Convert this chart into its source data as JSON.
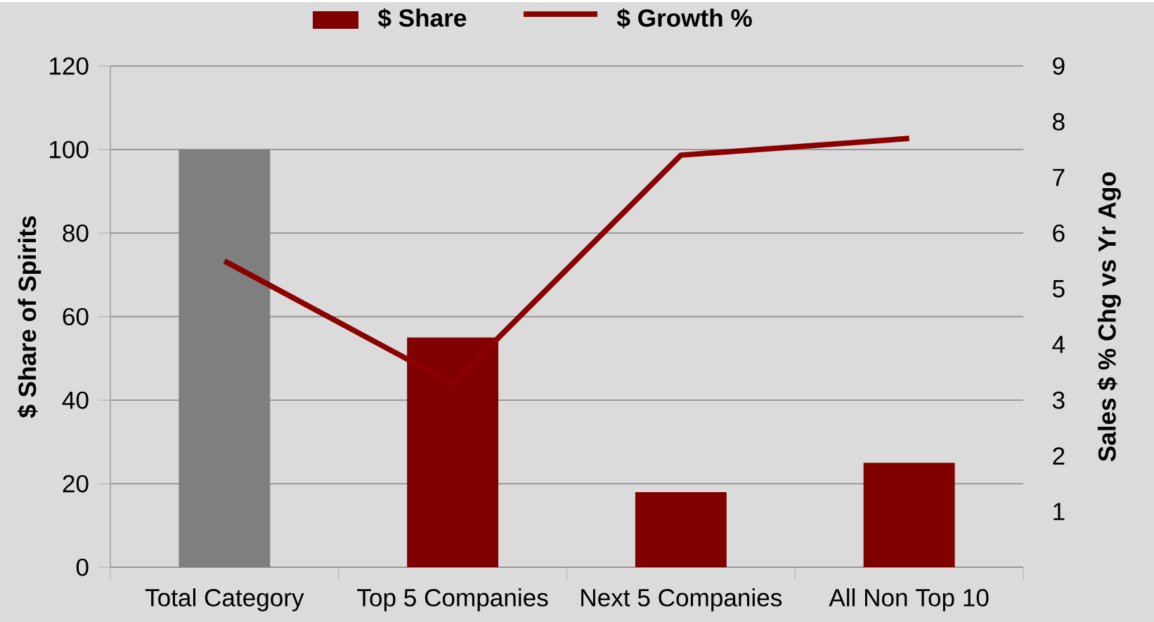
{
  "chart_data": {
    "type": "bar",
    "categories": [
      "Total Category",
      "Top 5 Companies",
      "Next 5 Companies",
      "All Non Top 10"
    ],
    "ylabel": "$ Share of Spirits",
    "y2label": "Sales $ % Chg vs Yr Ago",
    "series": [
      {
        "name": "$ Share",
        "color": "#800000",
        "colors": [
          "#7f7f7f",
          "#800000",
          "#800000",
          "#800000"
        ],
        "values": [
          100,
          55,
          18,
          25
        ]
      },
      {
        "name": "$ Growth %",
        "type": "line",
        "axis": "y2",
        "color": "#8b0000",
        "values": [
          5.5,
          3.3,
          7.4,
          7.7
        ]
      }
    ],
    "ylim": [
      0,
      120
    ],
    "yticks": [
      0,
      20,
      40,
      60,
      80,
      100,
      120
    ],
    "y2lim": [
      0,
      9
    ],
    "y2ticks": [
      1,
      2,
      3,
      4,
      5,
      6,
      7,
      8,
      9
    ],
    "grid": "y",
    "legend": "top"
  }
}
